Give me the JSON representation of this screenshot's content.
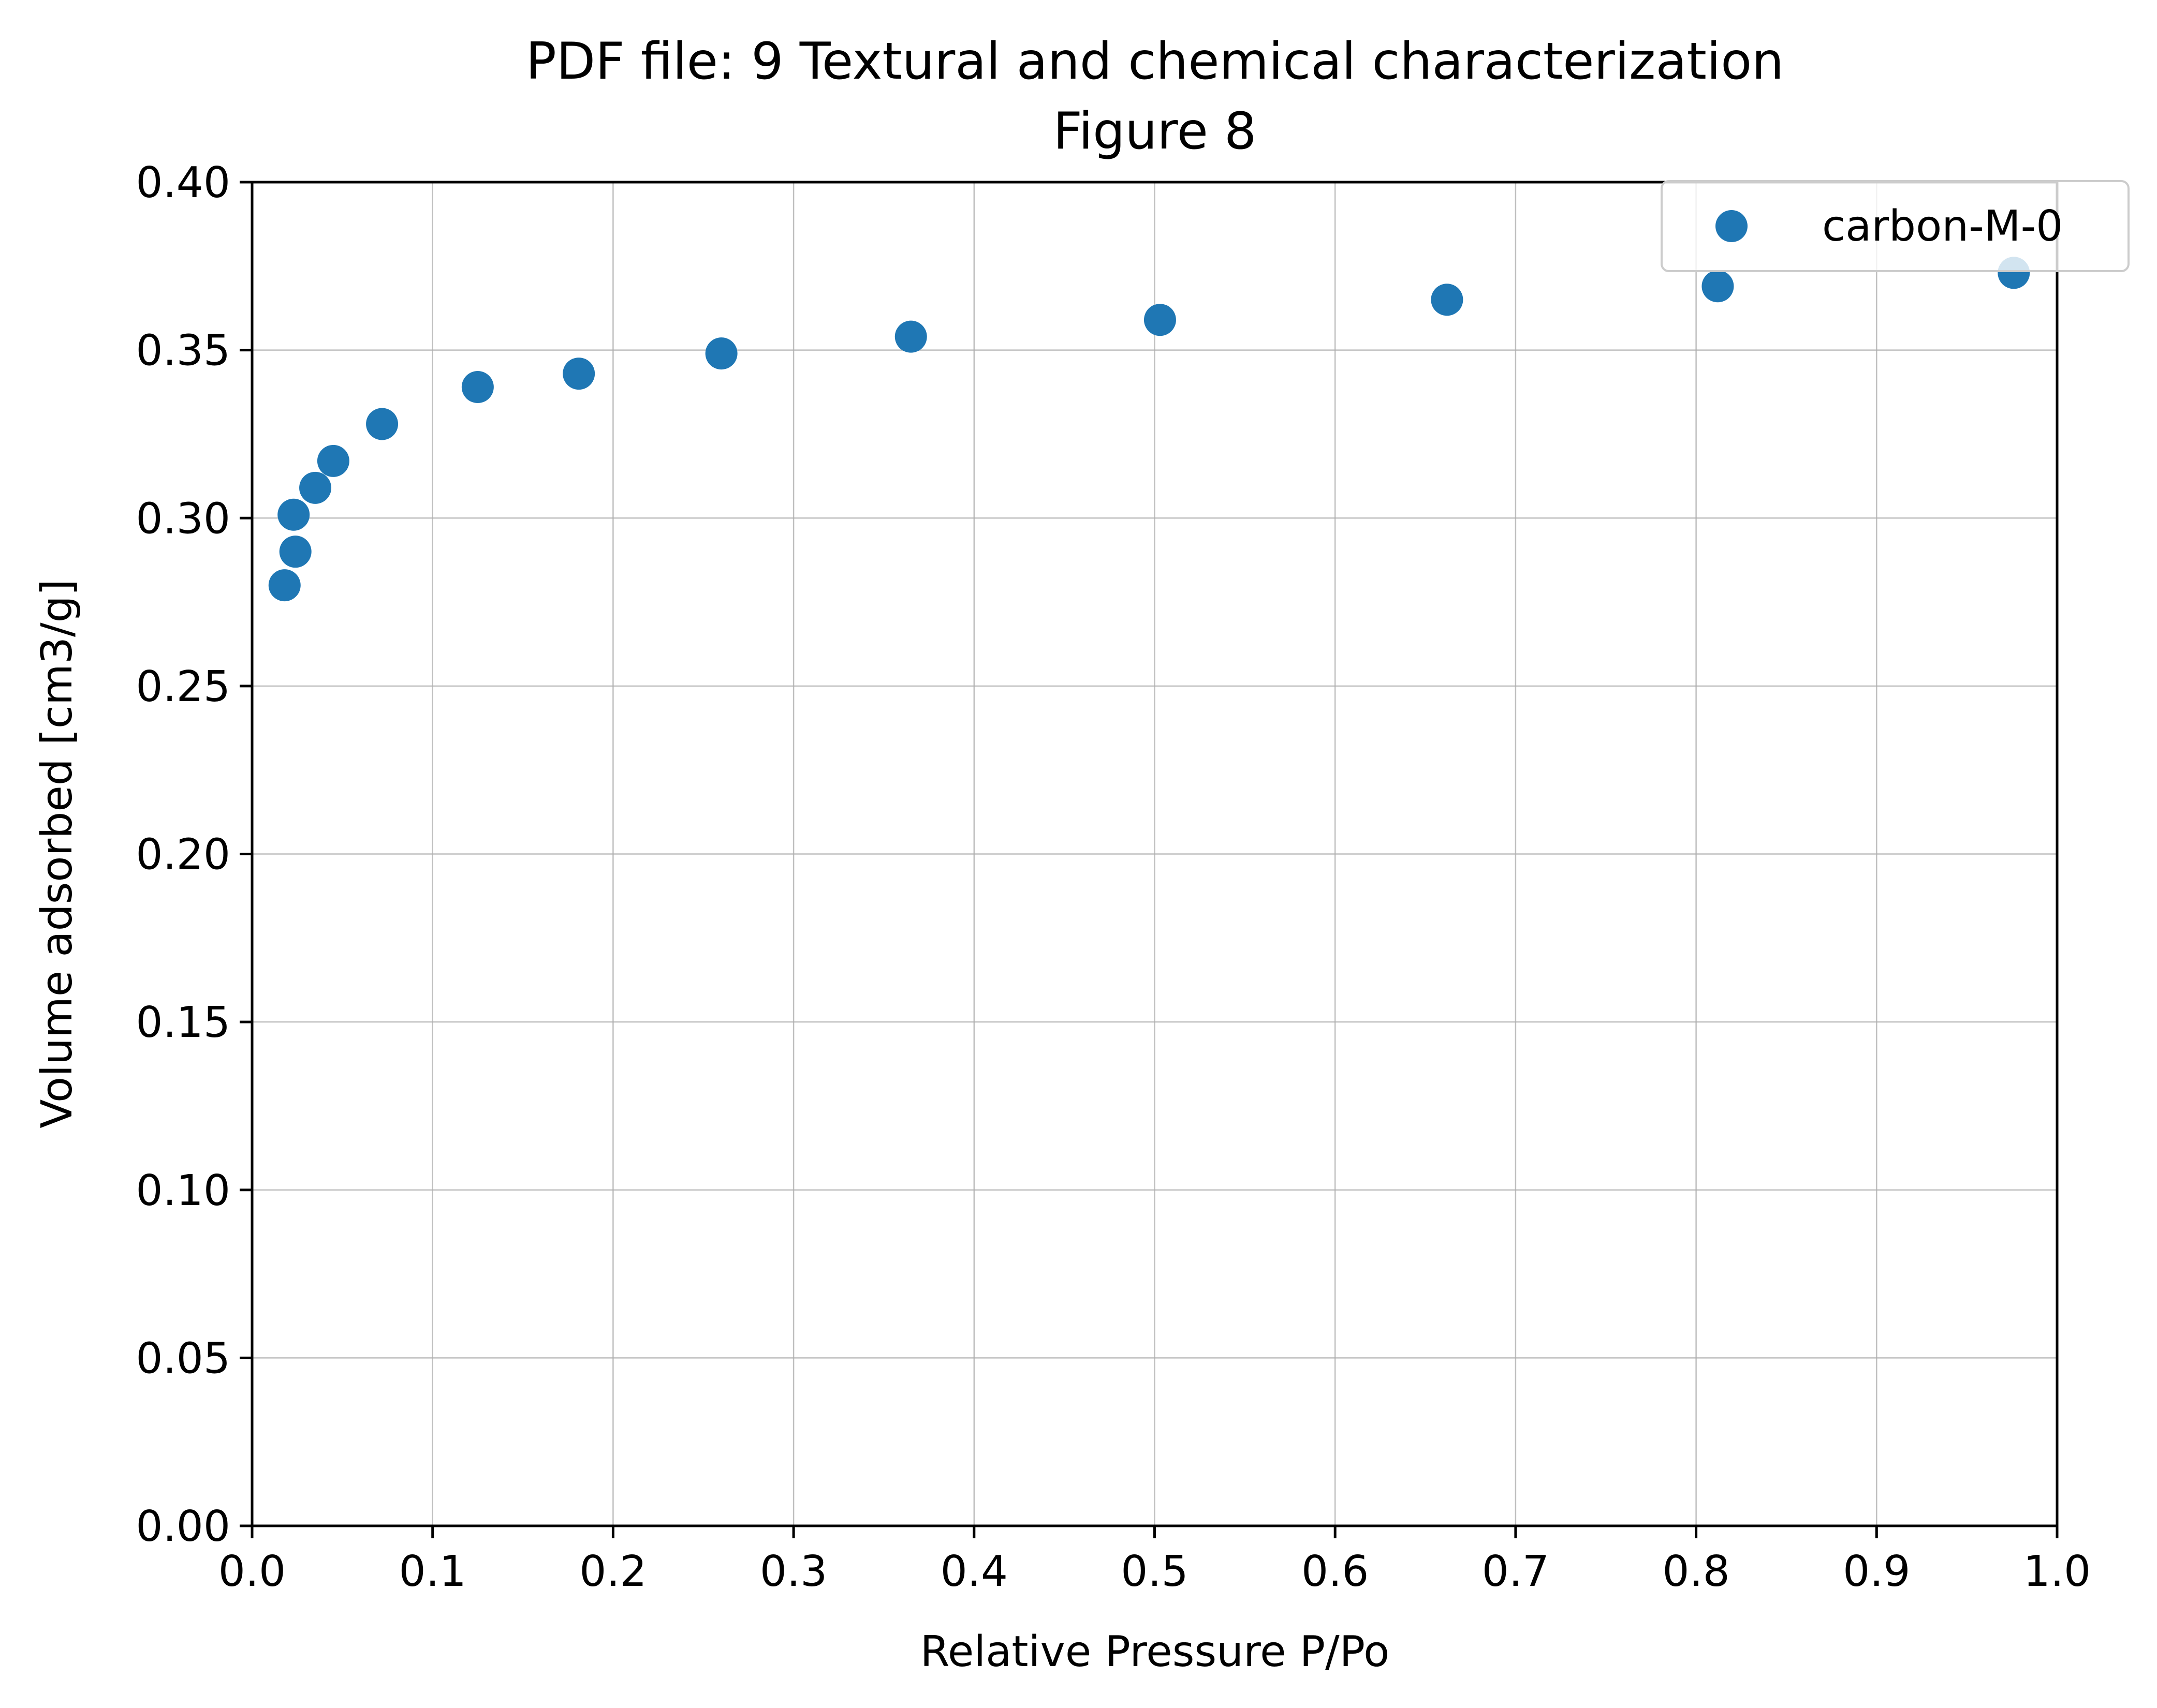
{
  "chart_data": {
    "type": "scatter",
    "title_line1": "PDF file: 9 Textural and chemical characterization",
    "title_line2": "Figure 8",
    "xlabel": "Relative Pressure P/Po",
    "ylabel": "Volume adsorbed [cm3/g]",
    "xlim": [
      0.0,
      1.0
    ],
    "ylim": [
      0.0,
      0.4
    ],
    "xticks": [
      "0.0",
      "0.1",
      "0.2",
      "0.3",
      "0.4",
      "0.5",
      "0.6",
      "0.7",
      "0.8",
      "0.9",
      "1.0"
    ],
    "yticks": [
      "0.00",
      "0.05",
      "0.10",
      "0.15",
      "0.20",
      "0.25",
      "0.30",
      "0.35",
      "0.40"
    ],
    "grid": true,
    "legend_position": "top-right",
    "series": [
      {
        "name": "carbon-M-0",
        "color": "#1f77b4",
        "marker": "circle",
        "points": [
          {
            "x": 0.018,
            "y": 0.28
          },
          {
            "x": 0.024,
            "y": 0.29
          },
          {
            "x": 0.023,
            "y": 0.301
          },
          {
            "x": 0.035,
            "y": 0.309
          },
          {
            "x": 0.045,
            "y": 0.317
          },
          {
            "x": 0.072,
            "y": 0.328
          },
          {
            "x": 0.125,
            "y": 0.339
          },
          {
            "x": 0.181,
            "y": 0.343
          },
          {
            "x": 0.26,
            "y": 0.349
          },
          {
            "x": 0.365,
            "y": 0.354
          },
          {
            "x": 0.503,
            "y": 0.359
          },
          {
            "x": 0.662,
            "y": 0.365
          },
          {
            "x": 0.812,
            "y": 0.369
          },
          {
            "x": 0.976,
            "y": 0.373
          }
        ]
      }
    ]
  }
}
